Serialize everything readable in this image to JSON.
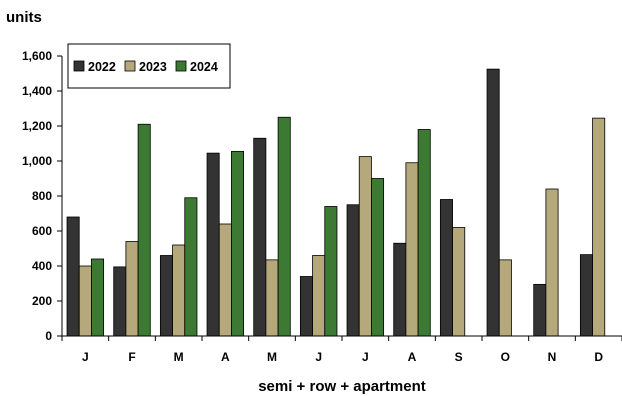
{
  "chart_data": {
    "type": "bar",
    "title": "",
    "ylabel": "units",
    "xlabel": "semi + row + apartment",
    "categories": [
      "J",
      "F",
      "M",
      "A",
      "M",
      "J",
      "J",
      "A",
      "S",
      "O",
      "N",
      "D"
    ],
    "series": [
      {
        "name": "2022",
        "color": "#333333",
        "values": [
          680,
          395,
          460,
          1045,
          1130,
          340,
          750,
          530,
          780,
          1525,
          295,
          465
        ]
      },
      {
        "name": "2023",
        "color": "#b5a87a",
        "values": [
          400,
          540,
          520,
          640,
          435,
          460,
          1025,
          990,
          620,
          435,
          840,
          1245
        ]
      },
      {
        "name": "2024",
        "color": "#3c7a34",
        "values": [
          440,
          1210,
          790,
          1055,
          1250,
          740,
          900,
          1180,
          null,
          null,
          null,
          null
        ]
      }
    ],
    "ylim": [
      0,
      1600
    ],
    "yticks": [
      "0",
      "200",
      "400",
      "600",
      "800",
      "1,000",
      "1,200",
      "1,400",
      "1,600"
    ],
    "grid": false,
    "legend_position": "top-left"
  }
}
